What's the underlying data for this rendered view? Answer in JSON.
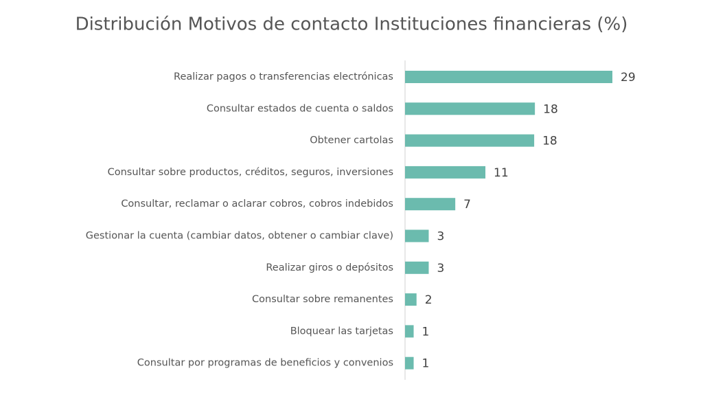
{
  "chart_data": {
    "type": "bar",
    "orientation": "horizontal",
    "title": "Distribución Motivos de contacto Instituciones financieras (%)",
    "categories": [
      "Realizar pagos o transferencias electrónicas",
      "Consultar estados de cuenta o saldos",
      "Obtener cartolas",
      "Consultar sobre productos, créditos, seguros, inversiones",
      "Consultar, reclamar o aclarar cobros, cobros indebidos",
      "Gestionar la cuenta (cambiar datos, obtener o cambiar clave)",
      "Realizar giros o depósitos",
      "Consultar sobre remanentes",
      "Bloquear las tarjetas",
      "Consultar por programas de beneficios y convenios"
    ],
    "values": [
      28.9,
      18.1,
      18.0,
      11.2,
      7.0,
      3.3,
      3.3,
      1.6,
      1.2,
      1.2
    ],
    "value_labels": [
      "29",
      "18",
      "18",
      "11",
      "7",
      "3",
      "3",
      "2",
      "1",
      "1"
    ],
    "color": "#6bbbae"
  }
}
